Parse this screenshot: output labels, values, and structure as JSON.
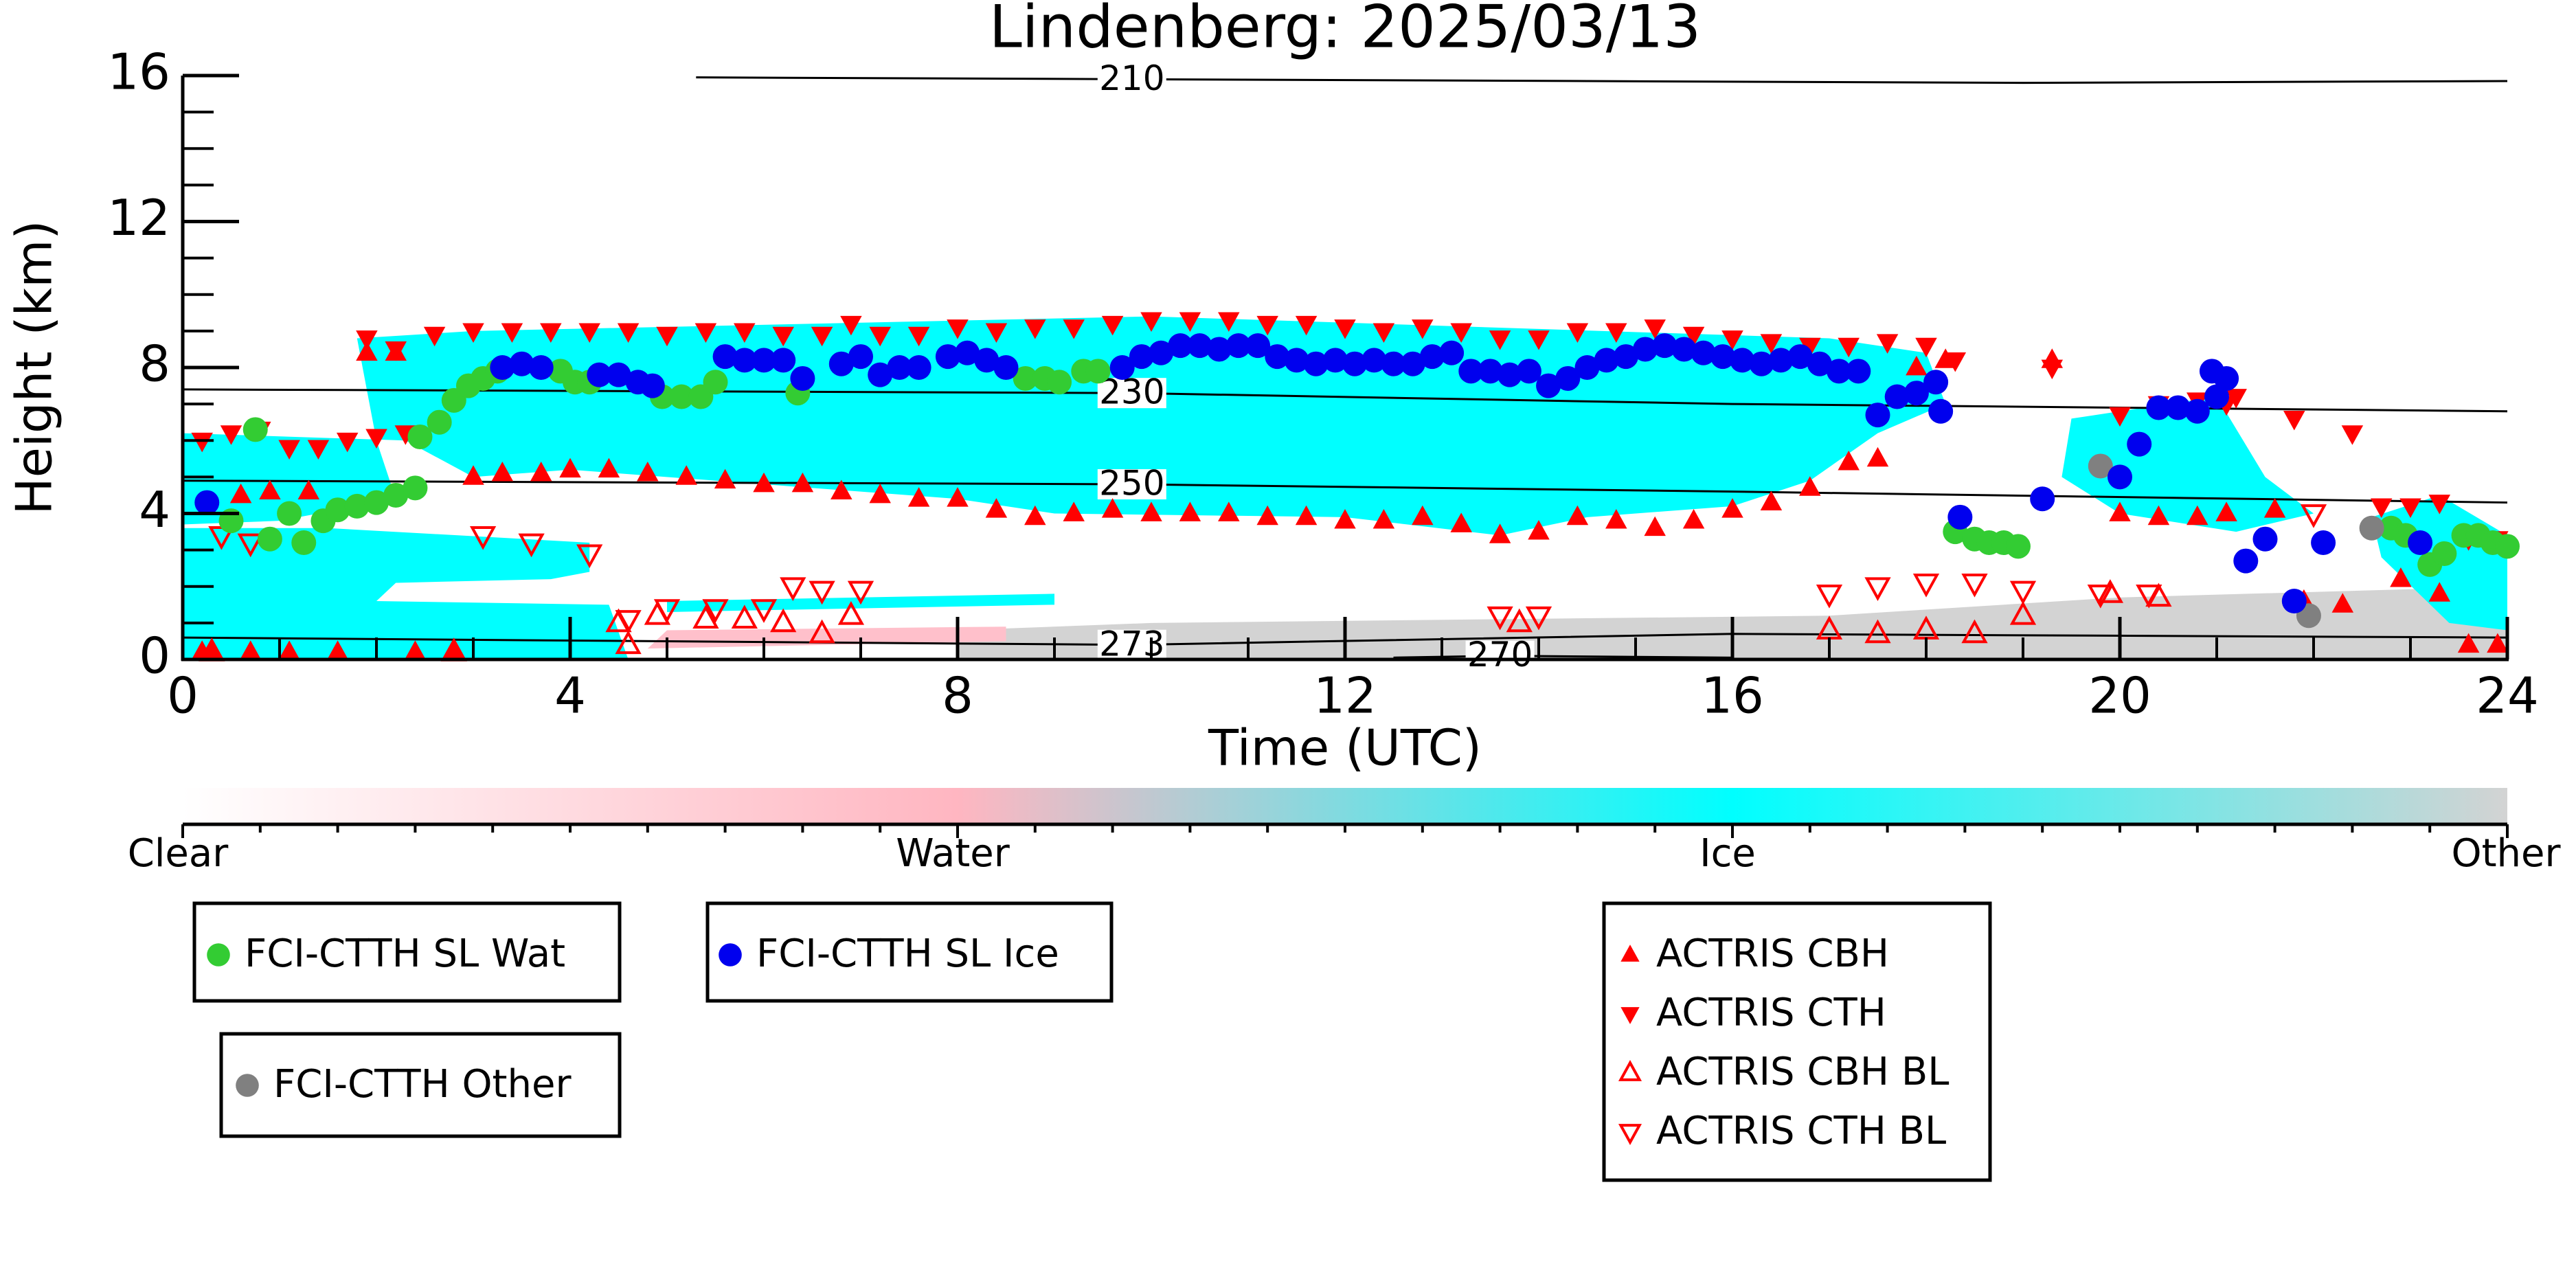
{
  "chart_data": {
    "type": "scatter",
    "title": "Lindenberg: 2025/03/13",
    "xlabel": "Time (UTC)",
    "ylabel": "Height (km)",
    "xlim": [
      0,
      24
    ],
    "ylim": [
      0,
      16
    ],
    "xticks": [
      0,
      4,
      8,
      12,
      16,
      20,
      24
    ],
    "yticks": [
      0,
      4,
      8,
      12,
      16
    ],
    "series": [
      {
        "name": "FCI-CTTH SL Wat",
        "color": "#33cc33",
        "marker": "circle",
        "filled": true,
        "x": [
          0.5,
          0.75,
          0.9,
          1.1,
          1.25,
          1.45,
          1.6,
          1.8,
          2.0,
          2.2,
          2.4,
          2.45,
          2.65,
          2.8,
          2.95,
          3.1,
          3.25,
          3.9,
          4.05,
          4.2,
          4.95,
          5.15,
          5.35,
          5.5,
          6.35,
          8.7,
          8.9,
          9.05,
          9.3,
          9.45,
          18.3,
          18.5,
          18.65,
          18.8,
          18.95,
          22.8,
          22.95,
          23.2,
          23.35,
          23.55,
          23.7,
          23.85,
          24.0
        ],
        "values": [
          3.8,
          6.3,
          3.3,
          4.0,
          3.2,
          3.8,
          4.1,
          4.2,
          4.3,
          4.5,
          4.7,
          6.1,
          6.5,
          7.1,
          7.5,
          7.7,
          7.9,
          7.9,
          7.6,
          7.6,
          7.2,
          7.2,
          7.2,
          7.6,
          7.3,
          7.7,
          7.7,
          7.6,
          7.9,
          7.9,
          3.5,
          3.3,
          3.2,
          3.2,
          3.1,
          3.6,
          3.4,
          2.6,
          2.9,
          3.4,
          3.4,
          3.2,
          3.1
        ]
      },
      {
        "name": "FCI-CTTH SL Ice",
        "color": "#0000ee",
        "marker": "circle",
        "filled": true,
        "x": [
          0.25,
          3.3,
          3.5,
          3.7,
          4.3,
          4.5,
          4.7,
          4.85,
          5.6,
          5.8,
          6.0,
          6.2,
          6.4,
          6.8,
          7.0,
          7.2,
          7.4,
          7.6,
          7.9,
          8.1,
          8.3,
          8.5,
          9.7,
          9.9,
          10.1,
          10.3,
          10.5,
          10.7,
          10.9,
          11.1,
          11.3,
          11.5,
          11.7,
          11.9,
          12.1,
          12.3,
          12.5,
          12.7,
          12.9,
          13.1,
          13.3,
          13.5,
          13.7,
          13.9,
          14.1,
          14.3,
          14.5,
          14.7,
          14.9,
          15.1,
          15.3,
          15.5,
          15.7,
          15.9,
          16.1,
          16.3,
          16.5,
          16.7,
          16.9,
          17.1,
          17.3,
          17.5,
          17.7,
          17.9,
          18.1,
          18.15,
          18.35,
          19.2,
          20.0,
          20.2,
          20.4,
          20.6,
          20.8,
          21.0,
          20.95,
          21.1,
          21.3,
          21.5,
          21.8,
          22.1,
          23.1
        ],
        "values": [
          4.3,
          8.0,
          8.1,
          8.0,
          7.8,
          7.8,
          7.6,
          7.5,
          8.3,
          8.2,
          8.2,
          8.2,
          7.7,
          8.1,
          8.3,
          7.8,
          8.0,
          8.0,
          8.3,
          8.4,
          8.2,
          8.0,
          8.0,
          8.3,
          8.4,
          8.6,
          8.6,
          8.5,
          8.6,
          8.6,
          8.3,
          8.2,
          8.1,
          8.2,
          8.1,
          8.2,
          8.1,
          8.1,
          8.3,
          8.4,
          7.9,
          7.9,
          7.8,
          7.9,
          7.5,
          7.7,
          8.0,
          8.2,
          8.3,
          8.5,
          8.6,
          8.5,
          8.4,
          8.3,
          8.2,
          8.1,
          8.2,
          8.3,
          8.1,
          7.9,
          7.9,
          6.7,
          7.2,
          7.3,
          7.6,
          6.8,
          3.9,
          4.4,
          5.0,
          5.9,
          6.9,
          6.9,
          6.8,
          7.2,
          7.9,
          7.7,
          2.7,
          3.3,
          1.6,
          3.2,
          3.2
        ]
      },
      {
        "name": "FCI-CTTH Other",
        "color": "#808080",
        "marker": "circle",
        "filled": true,
        "x": [
          19.8,
          21.95,
          22.6
        ],
        "values": [
          5.3,
          1.2,
          3.6
        ]
      },
      {
        "name": "ACTRIS CBH",
        "color": "#ff0000",
        "marker": "triangle-up",
        "filled": true,
        "x": [
          0.2,
          0.3,
          0.6,
          0.7,
          0.9,
          1.1,
          1.3,
          1.6,
          1.9,
          2.2,
          2.4,
          2.8,
          3.0,
          3.3,
          3.7,
          4.0,
          4.4,
          4.8,
          5.2,
          5.6,
          6.0,
          6.4,
          6.8,
          7.2,
          7.6,
          8.0,
          8.4,
          8.8,
          9.2,
          9.6,
          10.0,
          10.4,
          10.8,
          11.2,
          11.6,
          12.0,
          12.4,
          12.8,
          13.2,
          13.6,
          14.0,
          14.4,
          14.8,
          15.2,
          15.6,
          16.0,
          16.4,
          16.8,
          17.2,
          17.5,
          17.9,
          18.2,
          19.3,
          20.0,
          20.4,
          20.8,
          21.1,
          21.6,
          21.9,
          22.3,
          22.9,
          23.3,
          23.6,
          23.9
        ],
        "values": [
          0.2,
          0.2,
          4.5,
          0.2,
          4.6,
          0.2,
          4.6,
          0.2,
          8.4,
          8.4,
          0.2,
          0.2,
          5.0,
          5.1,
          5.1,
          5.2,
          5.2,
          5.1,
          5.0,
          4.9,
          4.8,
          4.8,
          4.6,
          4.5,
          4.4,
          4.4,
          4.1,
          3.9,
          4.0,
          4.1,
          4.0,
          4.0,
          4.0,
          3.9,
          3.9,
          3.8,
          3.8,
          3.9,
          3.7,
          3.4,
          3.5,
          3.9,
          3.8,
          3.6,
          3.8,
          4.1,
          4.3,
          4.7,
          5.4,
          5.5,
          8.0,
          8.2,
          8.2,
          4.0,
          3.9,
          3.9,
          4.0,
          4.1,
          1.6,
          1.5,
          2.2,
          1.8,
          0.4,
          0.4
        ]
      },
      {
        "name": "ACTRIS CTH",
        "color": "#ff0000",
        "marker": "triangle-down",
        "filled": true,
        "x": [
          0.2,
          0.5,
          0.8,
          1.1,
          1.4,
          1.7,
          1.9,
          2.0,
          2.2,
          2.3,
          2.6,
          3.0,
          3.4,
          3.8,
          4.2,
          4.6,
          5.0,
          5.4,
          5.8,
          6.2,
          6.6,
          6.9,
          7.2,
          7.6,
          8.0,
          8.4,
          8.8,
          9.2,
          9.6,
          10.0,
          10.4,
          10.8,
          11.2,
          11.6,
          12.0,
          12.4,
          12.8,
          13.2,
          13.6,
          14.0,
          14.4,
          14.8,
          15.2,
          15.6,
          16.0,
          16.4,
          16.8,
          17.2,
          17.6,
          18.0,
          18.3,
          19.3,
          20.0,
          20.4,
          20.8,
          21.1,
          21.2,
          21.8,
          22.4,
          22.7,
          23.0,
          23.3,
          23.6,
          23.9
        ],
        "values": [
          6.0,
          6.2,
          6.3,
          5.8,
          5.8,
          6.0,
          8.8,
          6.1,
          8.5,
          6.2,
          8.9,
          9.0,
          9.0,
          9.0,
          9.0,
          9.0,
          8.9,
          9.0,
          9.0,
          8.9,
          8.9,
          9.2,
          8.9,
          8.9,
          9.1,
          9.0,
          9.1,
          9.1,
          9.2,
          9.3,
          9.3,
          9.3,
          9.2,
          9.2,
          9.1,
          9.0,
          9.1,
          9.0,
          8.8,
          8.8,
          9.0,
          9.0,
          9.1,
          8.9,
          8.8,
          8.7,
          8.6,
          8.6,
          8.7,
          8.6,
          8.2,
          8.0,
          6.7,
          7.0,
          7.1,
          7.0,
          7.2,
          6.6,
          6.2,
          4.2,
          4.2,
          4.3,
          3.3,
          3.3
        ]
      },
      {
        "name": "ACTRIS CBH BL",
        "color": "#ff0000",
        "marker": "triangle-up",
        "filled": false,
        "x": [
          0.3,
          2.8,
          4.5,
          4.6,
          4.9,
          5.4,
          5.8,
          6.2,
          6.6,
          6.9,
          13.8,
          17.0,
          17.5,
          18.0,
          18.5,
          19.0,
          19.9,
          20.4
        ],
        "values": [
          0.2,
          0.2,
          1.0,
          0.4,
          1.2,
          1.1,
          1.1,
          1.0,
          0.7,
          1.2,
          1.0,
          0.8,
          0.7,
          0.8,
          0.7,
          1.2,
          1.8,
          1.7
        ]
      },
      {
        "name": "ACTRIS CTH BL",
        "color": "#ff0000",
        "marker": "triangle-down",
        "filled": false,
        "x": [
          0.4,
          0.7,
          3.1,
          3.6,
          4.2,
          4.6,
          5.0,
          5.5,
          6.0,
          6.3,
          6.6,
          7.0,
          13.6,
          14.0,
          17.0,
          17.5,
          18.0,
          18.5,
          19.0,
          19.8,
          20.3,
          22.0
        ],
        "values": [
          3.4,
          3.2,
          3.4,
          3.2,
          2.9,
          1.1,
          1.4,
          1.4,
          1.4,
          2.0,
          1.9,
          1.9,
          1.2,
          1.2,
          1.8,
          2.0,
          2.1,
          2.1,
          1.9,
          1.8,
          1.8,
          4.0
        ]
      }
    ],
    "contours": [
      {
        "level": 210,
        "x": [
          5.3,
          9.8,
          19,
          24
        ],
        "values": [
          15.95,
          15.9,
          15.8,
          15.85
        ]
      },
      {
        "level": 230,
        "x": [
          0,
          9.8,
          16,
          24
        ],
        "values": [
          7.4,
          7.3,
          7.0,
          6.8
        ]
      },
      {
        "level": 250,
        "x": [
          0,
          9.8,
          16,
          24
        ],
        "values": [
          4.9,
          4.8,
          4.6,
          4.3
        ]
      },
      {
        "level": 273,
        "x": [
          0,
          9.8,
          16,
          24
        ],
        "values": [
          0.6,
          0.4,
          0.7,
          0.6
        ]
      },
      {
        "level": 270,
        "x": [
          12.5,
          13.6,
          16
        ],
        "values": [
          0.05,
          0.1,
          0.05
        ]
      }
    ],
    "colorbar": {
      "labels": [
        "Clear",
        "Water",
        "Ice",
        "Other"
      ],
      "colors": [
        "#ffffff",
        "#ffb6c1",
        "#00ffff",
        "#d3d3d3"
      ]
    }
  }
}
